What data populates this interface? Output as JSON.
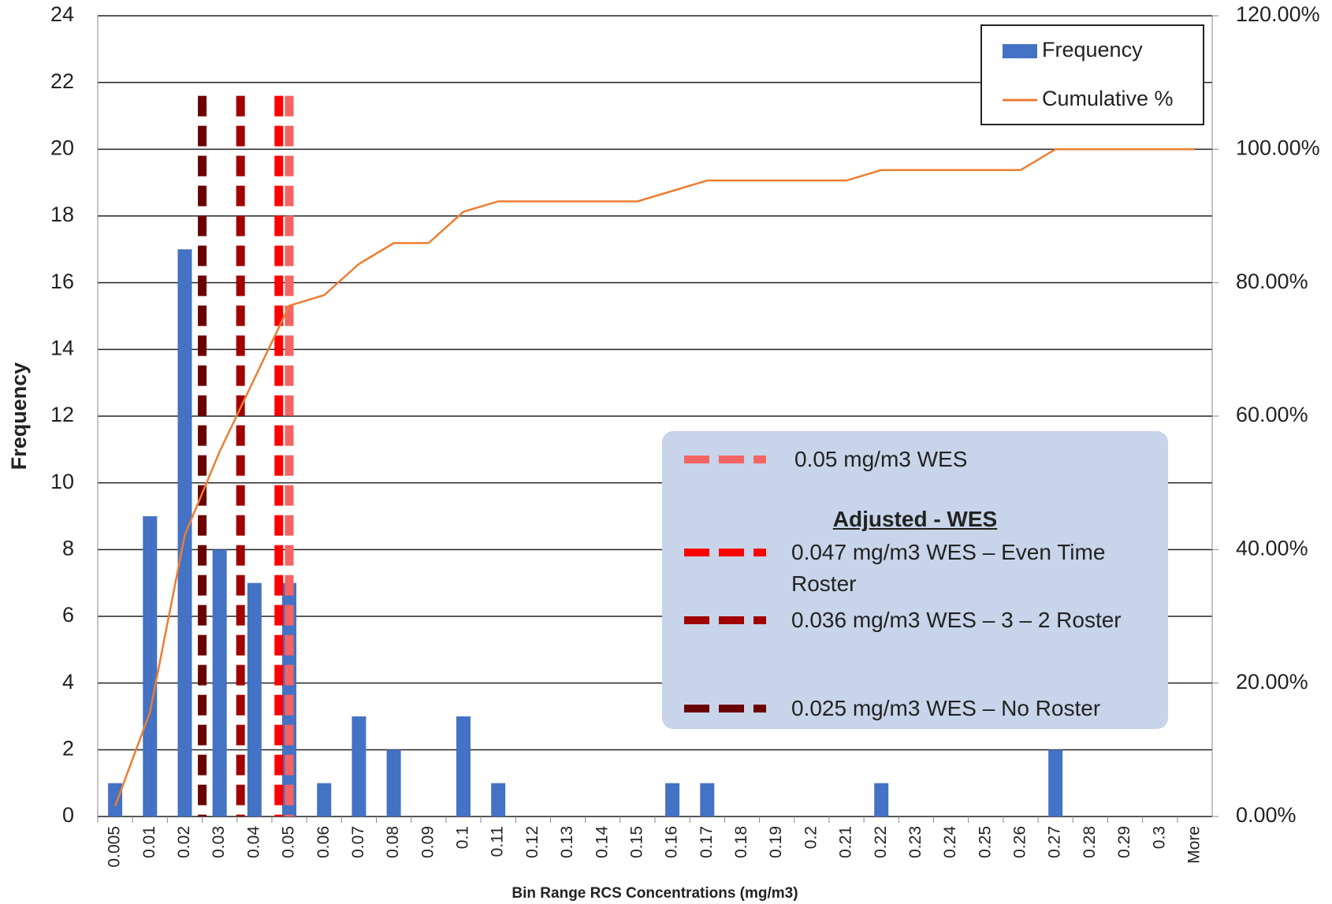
{
  "chart_data": {
    "type": "bar",
    "ylabel": "Frequency",
    "xlabel": "Bin Range RCS Concentrations (mg/m3)",
    "categories": [
      "0.005",
      "0.01",
      "0.02",
      "0.03",
      "0.04",
      "0.05",
      "0.06",
      "0.07",
      "0.08",
      "0.09",
      "0.1",
      "0.11",
      "0.12",
      "0.13",
      "0.14",
      "0.15",
      "0.16",
      "0.17",
      "0.18",
      "0.19",
      "0.2",
      "0.21",
      "0.22",
      "0.23",
      "0.24",
      "0.25",
      "0.26",
      "0.27",
      "0.28",
      "0.29",
      "0.3",
      "More"
    ],
    "series": [
      {
        "name": "Frequency",
        "type": "bar",
        "color": "#4472c4",
        "values": [
          1,
          9,
          17,
          8,
          7,
          7,
          1,
          3,
          2,
          0,
          3,
          1,
          0,
          0,
          0,
          0,
          1,
          1,
          0,
          0,
          0,
          0,
          1,
          0,
          0,
          0,
          0,
          2,
          0,
          0,
          0,
          0
        ]
      },
      {
        "name": "Cumulative %",
        "type": "line",
        "color": "#ed7d31",
        "axis": "y2",
        "values": [
          1.56,
          15.63,
          42.19,
          54.69,
          65.63,
          76.56,
          78.13,
          82.81,
          85.94,
          85.94,
          90.63,
          92.19,
          92.19,
          92.19,
          92.19,
          92.19,
          93.75,
          95.31,
          95.31,
          95.31,
          95.31,
          95.31,
          96.88,
          96.88,
          96.88,
          96.88,
          96.88,
          100,
          100,
          100,
          100,
          100
        ]
      }
    ],
    "ylim": [
      0,
      24
    ],
    "yticks": [
      0,
      2,
      4,
      6,
      8,
      10,
      12,
      14,
      16,
      18,
      20,
      22,
      24
    ],
    "y2lim": [
      0,
      120
    ],
    "y2ticks": [
      {
        "value": 0,
        "label": "0.00%"
      },
      {
        "value": 20,
        "label": "20.00%"
      },
      {
        "value": 40,
        "label": "40.00%"
      },
      {
        "value": 60,
        "label": "60.00%"
      },
      {
        "value": 80,
        "label": "80.00%"
      },
      {
        "value": 100,
        "label": "100.00%"
      },
      {
        "value": 120,
        "label": "120.00%"
      }
    ],
    "grid": true,
    "legend": "top-right",
    "reference_lines": [
      {
        "label": "0.05 mg/m3 WES",
        "value": 0.05,
        "color": "#f46464"
      },
      {
        "label": "0.047 mg/m3 WES – Even Time Roster",
        "value": 0.047,
        "color": "#ff0000"
      },
      {
        "label": "0.036 mg/m3 WES – 3 – 2 Roster",
        "value": 0.036,
        "color": "#a00000"
      },
      {
        "label": "0.025 mg/m3 WES – No Roster",
        "value": 0.025,
        "color": "#6a0000"
      }
    ],
    "reference_heading": "Adjusted - WES"
  }
}
